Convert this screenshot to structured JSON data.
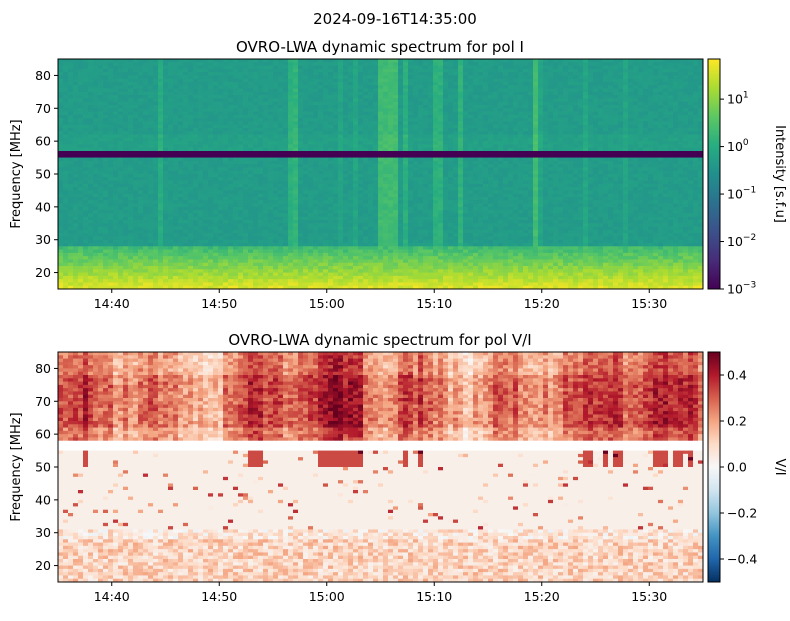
{
  "figure": {
    "suptitle": "2024-09-16T14:35:00"
  },
  "chart_data": [
    {
      "type": "heatmap",
      "title": "OVRO-LWA dynamic spectrum for pol I",
      "xlabel": "",
      "ylabel": "Frequency [MHz]",
      "x_tick_labels": [
        "14:40",
        "14:50",
        "15:00",
        "15:10",
        "15:20",
        "15:30"
      ],
      "x_tick_minutes": [
        5,
        15,
        25,
        35,
        45,
        55
      ],
      "xlim_minutes": [
        0,
        60
      ],
      "x_start_time": "14:35",
      "ylim": [
        15,
        85
      ],
      "y_ticks": [
        20,
        30,
        40,
        50,
        60,
        70,
        80
      ],
      "colormap": "viridis",
      "colorbar_label": "Intensity [s.f.u]",
      "colorbar_scale": "log",
      "colorbar_range": [
        0.001,
        70
      ],
      "colorbar_ticks": [
        {
          "value": 0.001,
          "base": "10",
          "exp": "−3"
        },
        {
          "value": 0.01,
          "base": "10",
          "exp": "−2"
        },
        {
          "value": 0.1,
          "base": "10",
          "exp": "−1"
        },
        {
          "value": 1,
          "base": "10",
          "exp": "0"
        },
        {
          "value": 10,
          "base": "10",
          "exp": "1"
        }
      ],
      "masked_band_mhz": [
        55,
        57
      ]
    },
    {
      "type": "heatmap",
      "title": "OVRO-LWA dynamic spectrum for pol V/I",
      "xlabel": "",
      "ylabel": "Frequency [MHz]",
      "x_tick_labels": [
        "14:40",
        "14:50",
        "15:00",
        "15:10",
        "15:20",
        "15:30"
      ],
      "x_tick_minutes": [
        5,
        15,
        25,
        35,
        45,
        55
      ],
      "xlim_minutes": [
        0,
        60
      ],
      "x_start_time": "14:35",
      "ylim": [
        15,
        85
      ],
      "y_ticks": [
        20,
        30,
        40,
        50,
        60,
        70,
        80
      ],
      "colormap": "RdBu_r",
      "colorbar_label": "V/I",
      "colorbar_scale": "linear",
      "colorbar_range": [
        -0.5,
        0.5
      ],
      "colorbar_ticks": [
        {
          "value": -0.4,
          "label": "−0.4"
        },
        {
          "value": -0.2,
          "label": "−0.2"
        },
        {
          "value": 0.0,
          "label": "0.0"
        },
        {
          "value": 0.2,
          "label": "0.2"
        },
        {
          "value": 0.4,
          "label": "0.4"
        }
      ],
      "masked_band_mhz": [
        55.5,
        57.5
      ]
    }
  ]
}
